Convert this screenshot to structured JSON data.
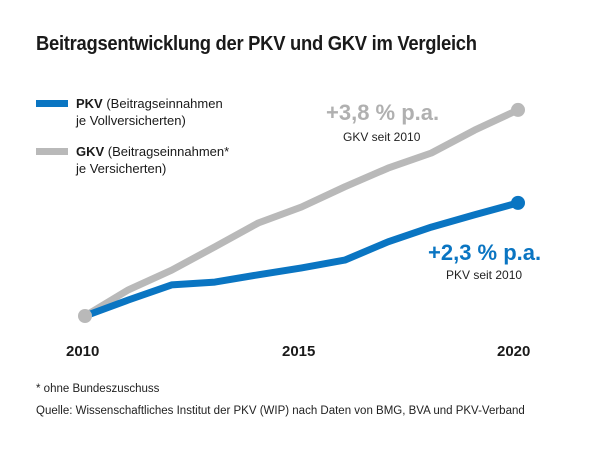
{
  "chart_data": {
    "type": "line",
    "title": "Beitragsentwicklung der PKV und GKV im Vergleich",
    "x": [
      2010,
      2011,
      2012,
      2013,
      2014,
      2015,
      2016,
      2017,
      2018,
      2019,
      2020
    ],
    "x_ticks": [
      "2010",
      "2015",
      "2020"
    ],
    "series": [
      {
        "name": "PKV",
        "legend_bold": "PKV",
        "legend_rest": " (Beitragseinnahmen",
        "legend_line2": "je Vollversicherten)",
        "color": "#0a75c2",
        "values": [
          100,
          103.5,
          106.8,
          107.4,
          109.0,
          110.5,
          112.2,
          116.2,
          119.4,
          122.1,
          124.7
        ]
      },
      {
        "name": "GKV",
        "legend_bold": "GKV",
        "legend_rest": " (Beitragseinnahmen*",
        "legend_line2": "je Versicherten)",
        "color": "#b9b9b9",
        "values": [
          100,
          105.7,
          110.0,
          115.1,
          120.3,
          123.8,
          128.2,
          132.3,
          135.6,
          140.6,
          145.0
        ]
      }
    ],
    "annotations": {
      "gkv_rate": "+3,8 % p.a.",
      "gkv_note": "GKV seit 2010",
      "pkv_rate": "+2,3 % p.a.",
      "pkv_note": "PKV seit 2010"
    },
    "grid": false,
    "legend_placement": "top-left"
  },
  "footnote": "* ohne Bundeszuschuss",
  "source": "Quelle: Wissenschaftliches Institut der PKV (WIP) nach Daten von BMG, BVA und PKV-Verband"
}
